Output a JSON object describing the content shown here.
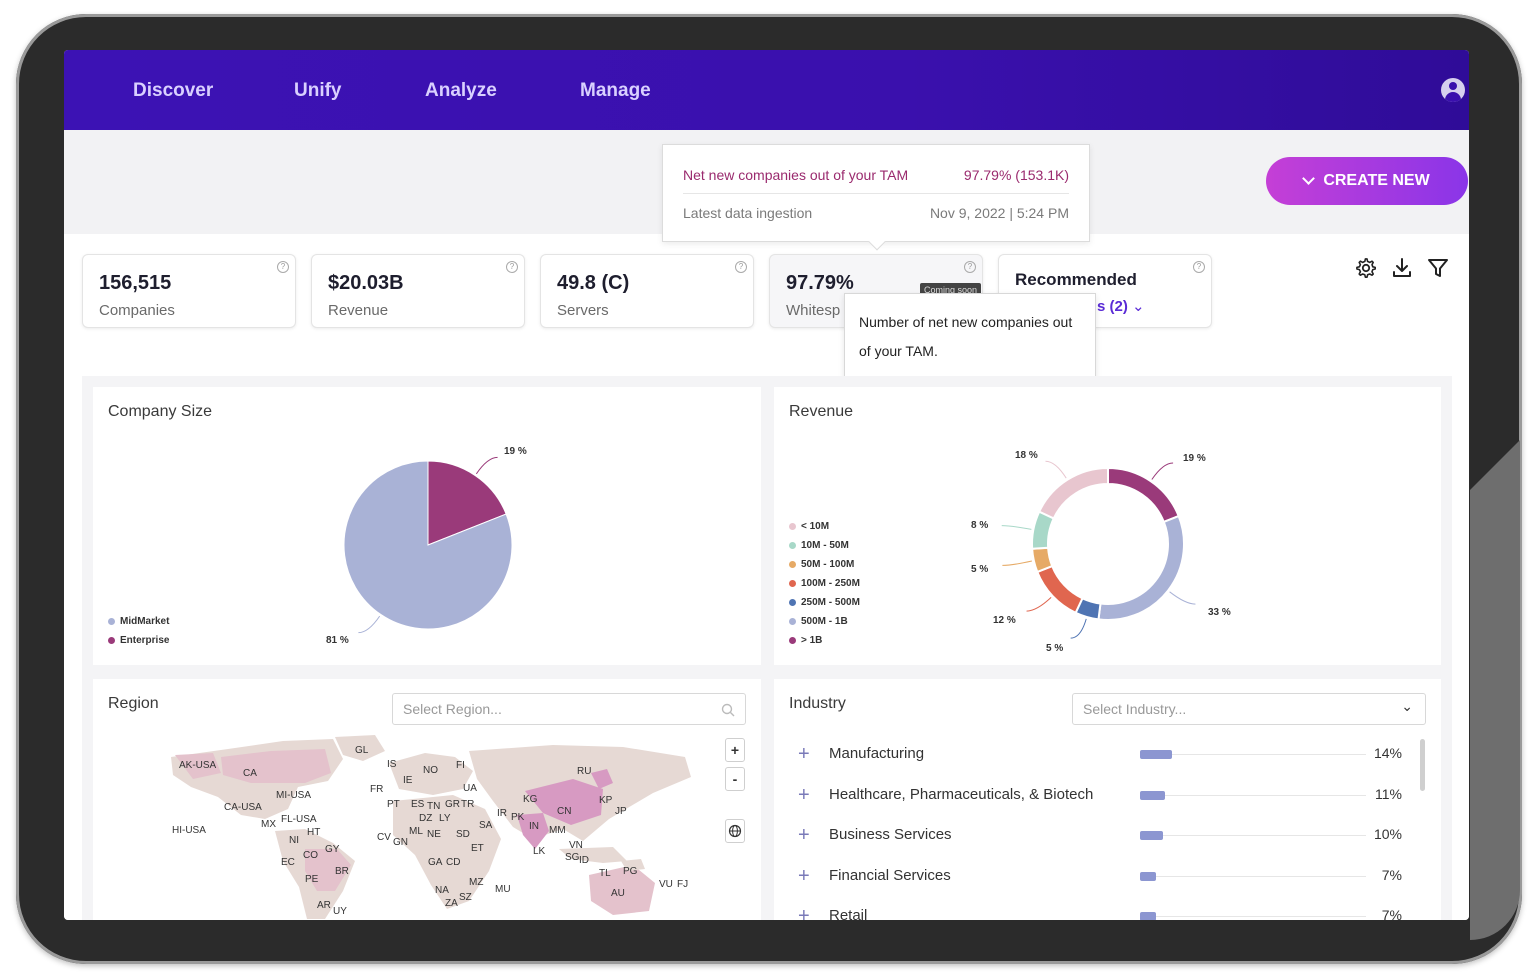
{
  "nav": {
    "items": [
      "Discover",
      "Unify",
      "Analyze",
      "Manage"
    ]
  },
  "create_button": {
    "label": "CREATE NEW"
  },
  "tam_popover": {
    "row1_label": "Net new companies out of your TAM",
    "row1_value": "97.79% (153.1K)",
    "row2_label": "Latest data ingestion",
    "row2_value": "Nov 9, 2022 | 5:24 PM"
  },
  "kpis": [
    {
      "value": "156,515",
      "label": "Companies"
    },
    {
      "value": "$20.03B",
      "label": "Revenue"
    },
    {
      "value": "49.8 (C)",
      "label": "Servers"
    },
    {
      "value": "97.79%",
      "label": "Whitesp",
      "badge": "Coming soon"
    },
    {
      "value": "Recommended",
      "sub": "s (2)"
    }
  ],
  "whitespace_tooltip": {
    "text": "Number of net new companies out of your TAM."
  },
  "company_size": {
    "title": "Company Size",
    "legend": [
      "MidMarket",
      "Enterprise"
    ],
    "labels": [
      "19 %",
      "81 %"
    ]
  },
  "revenue": {
    "title": "Revenue",
    "legend": [
      "< 10M",
      "10M - 50M",
      "50M - 100M",
      "100M - 250M",
      "250M - 500M",
      "500M - 1B",
      "> 1B"
    ],
    "labels": [
      "18 %",
      "19 %",
      "8 %",
      "5 %",
      "12 %",
      "5 %",
      "33 %"
    ]
  },
  "region": {
    "title": "Region",
    "placeholder": "Select Region...",
    "zoom_in": "+",
    "zoom_out": "-",
    "country_labels": [
      "AK-USA",
      "CA",
      "GL",
      "IS",
      "FI",
      "NO",
      "RU",
      "IE",
      "UA",
      "FR",
      "MI-USA",
      "CA-USA",
      "PT",
      "ES",
      "TN",
      "GR",
      "TR",
      "KG",
      "KP",
      "JP",
      "CN",
      "MX",
      "FL-USA",
      "DZ",
      "LY",
      "IR",
      "PK",
      "HI-USA",
      "HT",
      "SA",
      "IN",
      "MM",
      "NI",
      "GY",
      "CV",
      "ML",
      "NE",
      "SD",
      "CO",
      "GN",
      "ET",
      "LK",
      "VN",
      "EC",
      "GA",
      "CD",
      "SG",
      "ID",
      "PG",
      "PE",
      "BR",
      "TL",
      "MZ",
      "AU",
      "NA",
      "MU",
      "VU",
      "FJ",
      "AR",
      "UY",
      "ZA",
      "SZ"
    ]
  },
  "industry": {
    "title": "Industry",
    "placeholder": "Select Industry...",
    "rows": [
      {
        "name": "Manufacturing",
        "pct": "14%",
        "value": 14
      },
      {
        "name": "Healthcare, Pharmaceuticals, & Biotech",
        "pct": "11%",
        "value": 11
      },
      {
        "name": "Business Services",
        "pct": "10%",
        "value": 10
      },
      {
        "name": "Financial Services",
        "pct": "7%",
        "value": 7
      },
      {
        "name": "Retail",
        "pct": "7%",
        "value": 7
      }
    ]
  },
  "chart_data": [
    {
      "type": "pie",
      "title": "Company Size",
      "categories": [
        "MidMarket",
        "Enterprise"
      ],
      "values": [
        81,
        19
      ],
      "colors": [
        "#a9b2d6",
        "#9a3a7a"
      ],
      "legend": "bottom-left"
    },
    {
      "type": "pie",
      "title": "Revenue",
      "categories": [
        "< 10M",
        "10M - 50M",
        "50M - 100M",
        "100M - 250M",
        "250M - 500M",
        "500M - 1B",
        "> 1B"
      ],
      "values": [
        18,
        8,
        5,
        12,
        5,
        33,
        19
      ],
      "colors": [
        "#e8c6cf",
        "#a8d8c8",
        "#e6aa66",
        "#e0664f",
        "#4f74b3",
        "#a9b2d6",
        "#9a3a7a"
      ],
      "legend": "left"
    }
  ]
}
